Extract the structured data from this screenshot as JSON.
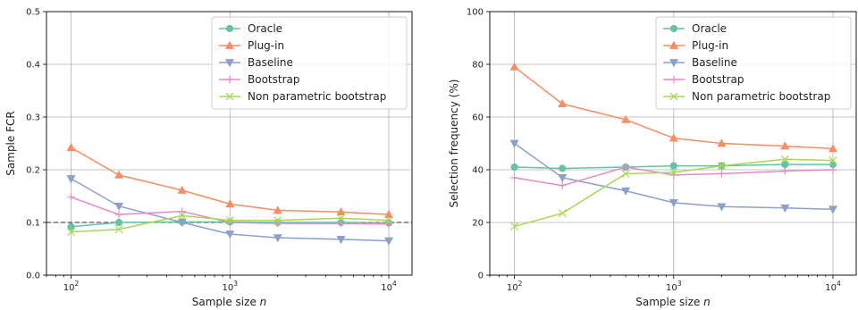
{
  "chart_data": [
    {
      "type": "line",
      "xscale": "log",
      "xlim": [
        70,
        14000
      ],
      "ylim": [
        0,
        0.5
      ],
      "xlabel": "Sample size",
      "xlabel_var": "n",
      "ylabel": "Sample FCR",
      "yticks": [
        "0.0",
        "0.1",
        "0.2",
        "0.3",
        "0.4",
        "0.5"
      ],
      "xticks": [
        {
          "base": "10",
          "exp": "2"
        },
        {
          "base": "10",
          "exp": "3"
        },
        {
          "base": "10",
          "exp": "4"
        }
      ],
      "grid": true,
      "legend_position": "top-right",
      "reference_line": {
        "y": 0.1,
        "style": "dashed"
      },
      "x": [
        100,
        200,
        500,
        1000,
        2000,
        5000,
        10000
      ],
      "series": [
        {
          "name": "Oracle",
          "marker": "circle",
          "color": "#66c2a5",
          "values": [
            0.092,
            0.1,
            0.101,
            0.101,
            0.1,
            0.1,
            0.099
          ]
        },
        {
          "name": "Plug-in",
          "marker": "triangle-up",
          "color": "#fc8d62",
          "values": [
            0.242,
            0.19,
            0.161,
            0.135,
            0.123,
            0.12,
            0.115
          ]
        },
        {
          "name": "Baseline",
          "marker": "triangle-down",
          "color": "#8da0cb",
          "values": [
            0.183,
            0.131,
            0.1,
            0.078,
            0.071,
            0.068,
            0.065
          ]
        },
        {
          "name": "Bootstrap",
          "marker": "plus",
          "color": "#e78ac3",
          "values": [
            0.148,
            0.115,
            0.121,
            0.1,
            0.098,
            0.098,
            0.097
          ]
        },
        {
          "name": "Non parametric bootstrap",
          "marker": "x",
          "color": "#a6d854",
          "values": [
            0.082,
            0.087,
            0.113,
            0.104,
            0.104,
            0.108,
            0.104
          ]
        }
      ]
    },
    {
      "type": "line",
      "xscale": "log",
      "xlim": [
        70,
        14000
      ],
      "ylim": [
        0,
        100
      ],
      "xlabel": "Sample size",
      "xlabel_var": "n",
      "ylabel": "Selection frequency (%)",
      "yticks": [
        "0",
        "20",
        "40",
        "60",
        "80",
        "100"
      ],
      "xticks": [
        {
          "base": "10",
          "exp": "2"
        },
        {
          "base": "10",
          "exp": "3"
        },
        {
          "base": "10",
          "exp": "4"
        }
      ],
      "grid": true,
      "legend_position": "top-right",
      "x": [
        100,
        200,
        500,
        1000,
        2000,
        5000,
        10000
      ],
      "series": [
        {
          "name": "Oracle",
          "marker": "circle",
          "color": "#66c2a5",
          "values": [
            41,
            40.5,
            41,
            41.5,
            41.5,
            42,
            42
          ]
        },
        {
          "name": "Plug-in",
          "marker": "triangle-up",
          "color": "#fc8d62",
          "values": [
            79,
            65,
            59,
            52,
            50,
            49,
            48
          ]
        },
        {
          "name": "Baseline",
          "marker": "triangle-down",
          "color": "#8da0cb",
          "values": [
            50,
            37,
            32,
            27.5,
            26,
            25.5,
            25
          ]
        },
        {
          "name": "Bootstrap",
          "marker": "plus",
          "color": "#e78ac3",
          "values": [
            37,
            34,
            41,
            38,
            38.5,
            39.5,
            40
          ]
        },
        {
          "name": "Non parametric bootstrap",
          "marker": "x",
          "color": "#a6d854",
          "values": [
            18.5,
            23.5,
            38.5,
            39,
            41.5,
            44,
            43.5
          ]
        }
      ]
    }
  ]
}
